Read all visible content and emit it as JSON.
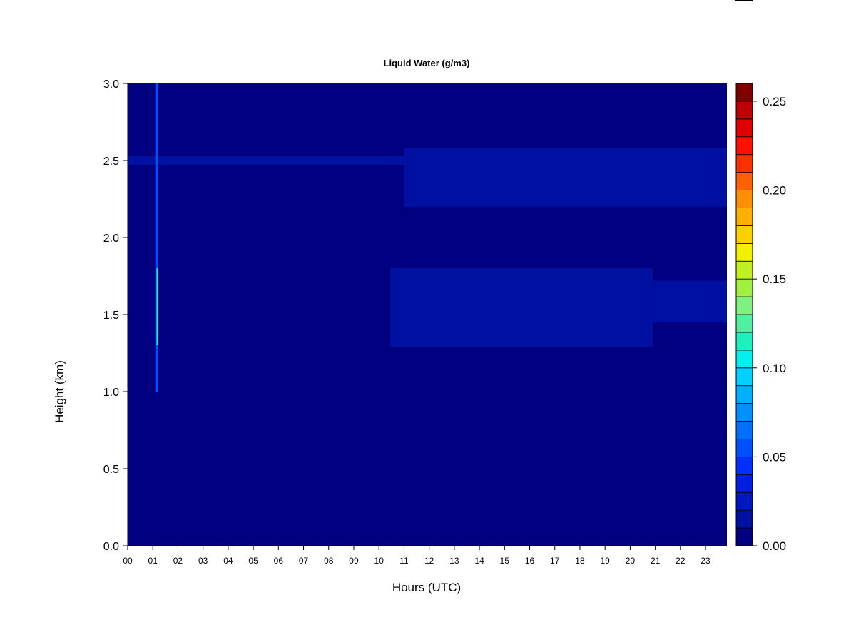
{
  "chart_data": {
    "type": "heatmap",
    "title": "Liquid Water (g/m3)",
    "xlabel": "Hours (UTC)",
    "ylabel": "Height (km)",
    "x_tick_labels": [
      "00",
      "01",
      "02",
      "03",
      "04",
      "05",
      "06",
      "07",
      "08",
      "09",
      "10",
      "11",
      "12",
      "13",
      "14",
      "15",
      "16",
      "17",
      "18",
      "19",
      "20",
      "21",
      "22",
      "23"
    ],
    "xlim": [
      0,
      23.85
    ],
    "y_tick_labels": [
      "0.0",
      "0.5",
      "1.0",
      "1.5",
      "2.0",
      "2.5",
      "3.0"
    ],
    "y_ticks": [
      0.0,
      0.5,
      1.0,
      1.5,
      2.0,
      2.5,
      3.0
    ],
    "ylim": [
      0,
      3.0
    ],
    "colorbar": {
      "range": [
        0.0,
        0.26
      ],
      "levels": 26,
      "tick_values": [
        0.0,
        0.05,
        0.1,
        0.15,
        0.2,
        0.25
      ],
      "tick_labels": [
        "0.00",
        "0.05",
        "0.10",
        "0.15",
        "0.20",
        "0.25"
      ],
      "colors": [
        "#000080",
        "#0010A0",
        "#0018C0",
        "#0020E0",
        "#0030FF",
        "#0050FF",
        "#0070FF",
        "#0090FF",
        "#00B0FF",
        "#00D0FF",
        "#00F0F0",
        "#20F0C0",
        "#50F0A0",
        "#80F080",
        "#A0F040",
        "#C0F020",
        "#F0F000",
        "#FFD000",
        "#FFB000",
        "#FF9000",
        "#FF6000",
        "#FF3000",
        "#FF1000",
        "#E00000",
        "#C00000",
        "#800000"
      ]
    },
    "background_value": 0.0,
    "features": [
      {
        "label": "upper layer",
        "hours": [
          0.0,
          11.0
        ],
        "height_km": [
          2.47,
          2.53
        ],
        "value": 0.015
      },
      {
        "label": "upper layer",
        "hours": [
          11.0,
          23.85
        ],
        "height_km": [
          2.2,
          2.58
        ],
        "value": 0.017
      },
      {
        "label": "lower layer",
        "hours": [
          10.45,
          20.9
        ],
        "height_km": [
          1.29,
          1.8
        ],
        "value": 0.018
      },
      {
        "label": "lower layer",
        "hours": [
          20.9,
          23.85
        ],
        "height_km": [
          1.45,
          1.72
        ],
        "value": 0.016
      },
      {
        "label": "streak",
        "hours": [
          1.1,
          1.2
        ],
        "height_km": [
          1.0,
          3.0
        ],
        "value": 0.055
      },
      {
        "label": "streak",
        "hours": [
          1.15,
          1.22
        ],
        "height_km": [
          1.3,
          1.8
        ],
        "value": 0.11
      }
    ],
    "grid": false,
    "legend": "colorbar-right"
  }
}
